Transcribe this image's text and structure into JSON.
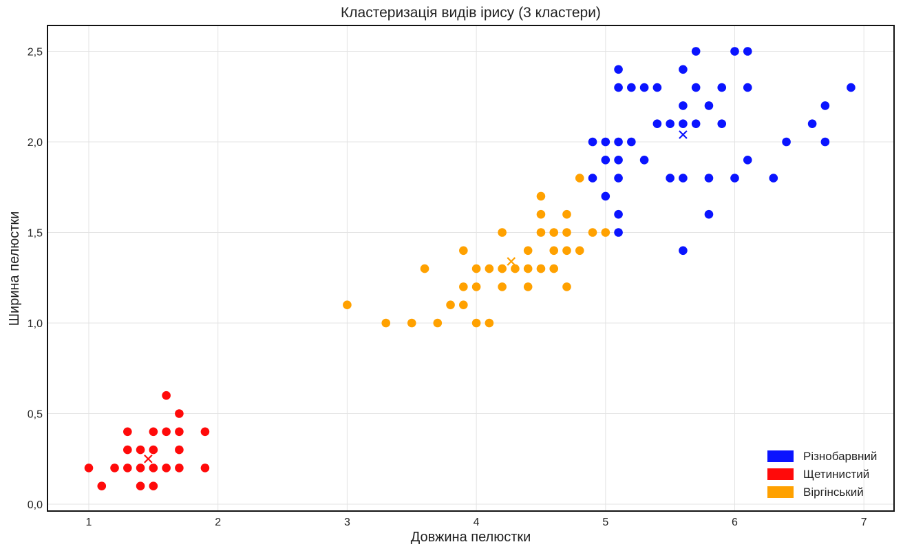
{
  "chart_data": {
    "type": "scatter",
    "title": "Кластеризація видів ірису (3 кластери)",
    "xlabel": "Довжина пелюстки",
    "ylabel": "Ширина пелюстки",
    "xlim": [
      0.7,
      7.2
    ],
    "ylim": [
      -0.03,
      2.65
    ],
    "x_ticks": [
      1,
      2,
      3,
      4,
      5,
      6,
      7
    ],
    "x_tick_labels": [
      "1",
      "2",
      "3",
      "4",
      "5",
      "6",
      "7"
    ],
    "y_ticks": [
      0.0,
      0.5,
      1.0,
      1.5,
      2.0,
      2.5
    ],
    "y_tick_labels": [
      "0,0",
      "0,5",
      "1,0",
      "1,5",
      "2,0",
      "2,5"
    ],
    "grid": true,
    "legend_position": "bottom-right",
    "series": [
      {
        "name": "Різнобарвний",
        "color": "#0a14ff",
        "points": [
          [
            5.1,
            2.4
          ],
          [
            5.6,
            2.4
          ],
          [
            5.7,
            2.5
          ],
          [
            6.0,
            2.5
          ],
          [
            6.1,
            2.5
          ],
          [
            5.1,
            2.3
          ],
          [
            5.2,
            2.3
          ],
          [
            5.3,
            2.3
          ],
          [
            5.4,
            2.3
          ],
          [
            5.7,
            2.3
          ],
          [
            5.9,
            2.3
          ],
          [
            6.1,
            2.3
          ],
          [
            6.9,
            2.3
          ],
          [
            5.6,
            2.2
          ],
          [
            5.8,
            2.2
          ],
          [
            6.7,
            2.2
          ],
          [
            5.4,
            2.1
          ],
          [
            5.5,
            2.1
          ],
          [
            5.6,
            2.1
          ],
          [
            5.7,
            2.1
          ],
          [
            5.9,
            2.1
          ],
          [
            6.6,
            2.1
          ],
          [
            4.9,
            2.0
          ],
          [
            5.0,
            2.0
          ],
          [
            5.1,
            2.0
          ],
          [
            5.2,
            2.0
          ],
          [
            6.4,
            2.0
          ],
          [
            6.7,
            2.0
          ],
          [
            5.0,
            1.9
          ],
          [
            5.1,
            1.9
          ],
          [
            5.3,
            1.9
          ],
          [
            6.1,
            1.9
          ],
          [
            4.9,
            1.8
          ],
          [
            5.1,
            1.8
          ],
          [
            5.5,
            1.8
          ],
          [
            5.6,
            1.8
          ],
          [
            5.8,
            1.8
          ],
          [
            6.0,
            1.8
          ],
          [
            6.3,
            1.8
          ],
          [
            5.0,
            1.7
          ],
          [
            5.1,
            1.6
          ],
          [
            5.8,
            1.6
          ],
          [
            5.1,
            1.5
          ],
          [
            5.6,
            1.4
          ]
        ],
        "centroid": [
          5.6,
          2.04
        ]
      },
      {
        "name": "Щетинистий",
        "color": "#ff0a0a",
        "points": [
          [
            1.6,
            0.6
          ],
          [
            1.7,
            0.5
          ],
          [
            1.3,
            0.4
          ],
          [
            1.5,
            0.4
          ],
          [
            1.6,
            0.4
          ],
          [
            1.7,
            0.4
          ],
          [
            1.9,
            0.4
          ],
          [
            1.3,
            0.3
          ],
          [
            1.4,
            0.3
          ],
          [
            1.5,
            0.3
          ],
          [
            1.7,
            0.3
          ],
          [
            1.0,
            0.2
          ],
          [
            1.2,
            0.2
          ],
          [
            1.3,
            0.2
          ],
          [
            1.4,
            0.2
          ],
          [
            1.5,
            0.2
          ],
          [
            1.6,
            0.2
          ],
          [
            1.7,
            0.2
          ],
          [
            1.9,
            0.2
          ],
          [
            1.1,
            0.1
          ],
          [
            1.4,
            0.1
          ],
          [
            1.5,
            0.1
          ]
        ],
        "centroid": [
          1.46,
          0.25
        ]
      },
      {
        "name": "Віргінський",
        "color": "#ffa100",
        "points": [
          [
            4.8,
            1.8
          ],
          [
            4.5,
            1.7
          ],
          [
            4.5,
            1.6
          ],
          [
            4.7,
            1.6
          ],
          [
            4.2,
            1.5
          ],
          [
            4.5,
            1.5
          ],
          [
            4.6,
            1.5
          ],
          [
            4.7,
            1.5
          ],
          [
            4.9,
            1.5
          ],
          [
            5.0,
            1.5
          ],
          [
            3.9,
            1.4
          ],
          [
            4.4,
            1.4
          ],
          [
            4.6,
            1.4
          ],
          [
            4.7,
            1.4
          ],
          [
            4.8,
            1.4
          ],
          [
            3.6,
            1.3
          ],
          [
            4.0,
            1.3
          ],
          [
            4.1,
            1.3
          ],
          [
            4.2,
            1.3
          ],
          [
            4.3,
            1.3
          ],
          [
            4.4,
            1.3
          ],
          [
            4.5,
            1.3
          ],
          [
            4.6,
            1.3
          ],
          [
            3.9,
            1.2
          ],
          [
            4.0,
            1.2
          ],
          [
            4.2,
            1.2
          ],
          [
            4.4,
            1.2
          ],
          [
            4.7,
            1.2
          ],
          [
            3.0,
            1.1
          ],
          [
            3.8,
            1.1
          ],
          [
            3.9,
            1.1
          ],
          [
            3.3,
            1.0
          ],
          [
            3.5,
            1.0
          ],
          [
            3.7,
            1.0
          ],
          [
            4.0,
            1.0
          ],
          [
            4.1,
            1.0
          ]
        ],
        "centroid": [
          4.27,
          1.34
        ]
      }
    ],
    "legend_order": [
      0,
      1,
      2
    ]
  }
}
